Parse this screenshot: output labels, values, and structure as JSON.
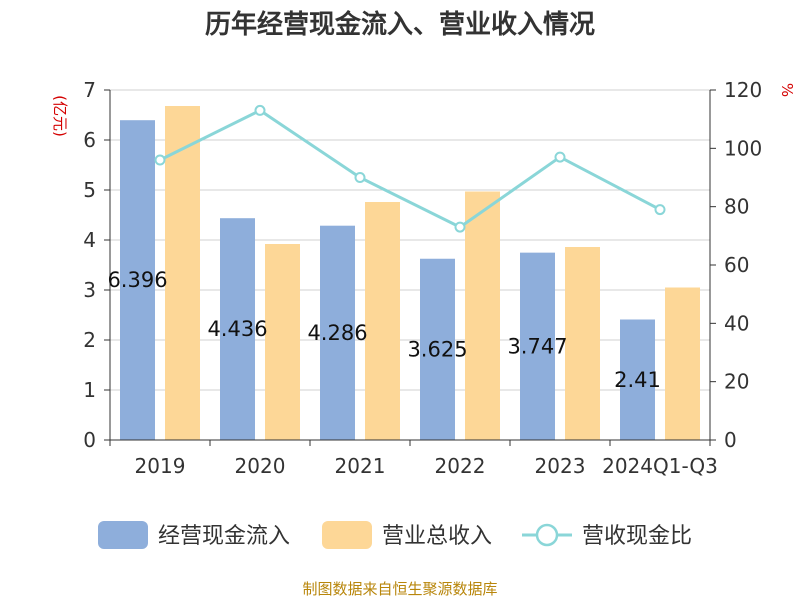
{
  "chart_data": {
    "type": "bar",
    "title": "历年经营现金流入、营业收入情况",
    "categories": [
      "2019",
      "2020",
      "2021",
      "2022",
      "2023",
      "2024Q1-Q3"
    ],
    "series": [
      {
        "name": "经营现金流入",
        "type": "bar",
        "axis": "left",
        "color": "#8eaedb",
        "values": [
          6.396,
          4.436,
          4.286,
          3.625,
          3.747,
          2.41
        ],
        "labels": [
          "6.396",
          "4.436",
          "4.286",
          "3.625",
          "3.747",
          "2.41"
        ]
      },
      {
        "name": "营业总收入",
        "type": "bar",
        "axis": "left",
        "color": "#fdd797",
        "values": [
          6.68,
          3.92,
          4.76,
          4.97,
          3.86,
          3.05
        ]
      },
      {
        "name": "营收现金比",
        "type": "line",
        "axis": "right",
        "color": "#8ad6d8",
        "values": [
          96,
          113,
          90,
          73,
          97,
          79
        ]
      }
    ],
    "left_axis": {
      "label": "(亿元)",
      "min": 0,
      "max": 7,
      "ticks": [
        "0",
        "1",
        "2",
        "3",
        "4",
        "5",
        "6",
        "7"
      ]
    },
    "right_axis": {
      "label": "%",
      "min": 0,
      "max": 120,
      "ticks": [
        "0",
        "20",
        "40",
        "60",
        "80",
        "100",
        "120"
      ]
    },
    "grid": true,
    "legend_position": "bottom"
  },
  "footer": "制图数据来自恒生聚源数据库"
}
